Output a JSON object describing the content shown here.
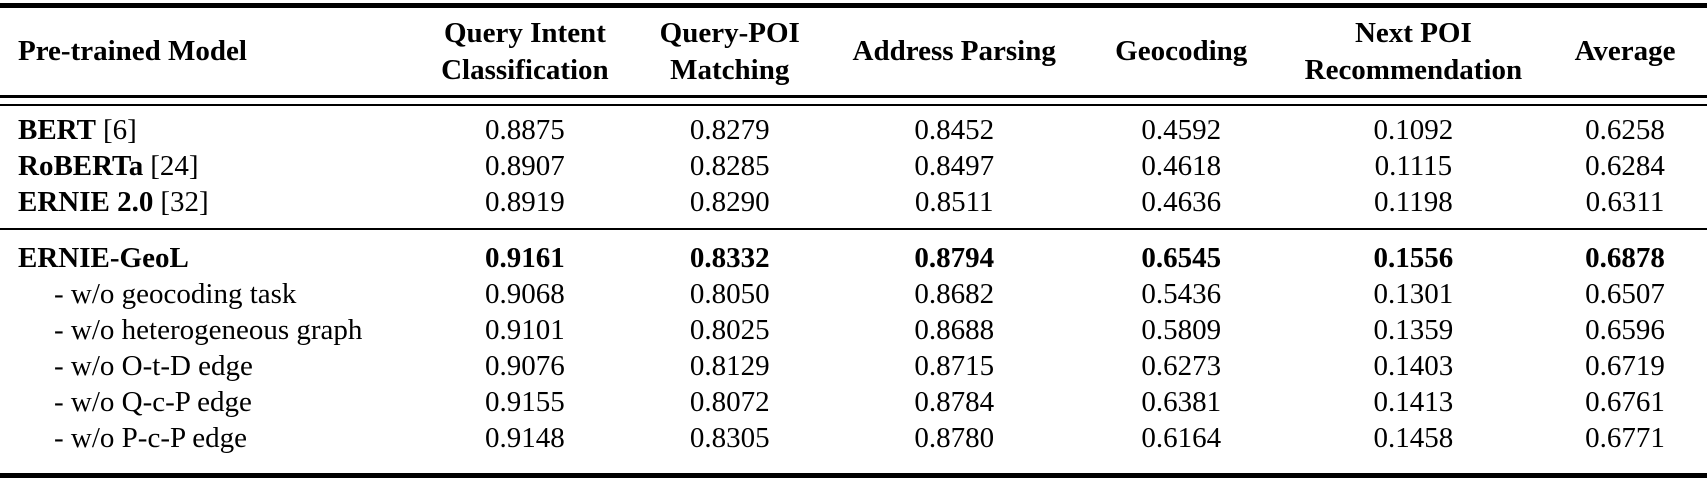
{
  "table": {
    "header": {
      "model": {
        "l1": "Pre-trained Model"
      },
      "qic": {
        "l1": "Query Intent",
        "l2": "Classification"
      },
      "qpm": {
        "l1": "Query-POI",
        "l2": "Matching"
      },
      "ap": {
        "l1": "Address Parsing"
      },
      "geo": {
        "l1": "Geocoding"
      },
      "npr": {
        "l1": "Next POI",
        "l2": "Recommendation"
      },
      "avg": {
        "l1": "Average"
      }
    },
    "baselines": [
      {
        "name": "BERT",
        "cite": "[6]",
        "qic": "0.8875",
        "qpm": "0.8279",
        "ap": "0.8452",
        "geo": "0.4592",
        "npr": "0.1092",
        "avg": "0.6258"
      },
      {
        "name": "RoBERTa",
        "cite": "[24]",
        "qic": "0.8907",
        "qpm": "0.8285",
        "ap": "0.8497",
        "geo": "0.4618",
        "npr": "0.1115",
        "avg": "0.6284"
      },
      {
        "name": "ERNIE 2.0",
        "cite": "[32]",
        "qic": "0.8919",
        "qpm": "0.8290",
        "ap": "0.8511",
        "geo": "0.4636",
        "npr": "0.1198",
        "avg": "0.6311"
      }
    ],
    "ernie_geol": {
      "name": "ERNIE-GeoL",
      "qic": "0.9161",
      "qpm": "0.8332",
      "ap": "0.8794",
      "geo": "0.6545",
      "npr": "0.1556",
      "avg": "0.6878"
    },
    "ablations": [
      {
        "name": "- w/o geocoding task",
        "qic": "0.9068",
        "qpm": "0.8050",
        "ap": "0.8682",
        "geo": "0.5436",
        "npr": "0.1301",
        "avg": "0.6507"
      },
      {
        "name": "- w/o heterogeneous graph",
        "qic": "0.9101",
        "qpm": "0.8025",
        "ap": "0.8688",
        "geo": "0.5809",
        "npr": "0.1359",
        "avg": "0.6596"
      },
      {
        "name": "- w/o O-t-D edge",
        "qic": "0.9076",
        "qpm": "0.8129",
        "ap": "0.8715",
        "geo": "0.6273",
        "npr": "0.1403",
        "avg": "0.6719"
      },
      {
        "name": "- w/o Q-c-P edge",
        "qic": "0.9155",
        "qpm": "0.8072",
        "ap": "0.8784",
        "geo": "0.6381",
        "npr": "0.1413",
        "avg": "0.6761"
      },
      {
        "name": "- w/o P-c-P edge",
        "qic": "0.9148",
        "qpm": "0.8305",
        "ap": "0.8780",
        "geo": "0.6164",
        "npr": "0.1458",
        "avg": "0.6771"
      }
    ],
    "colors": {
      "text": "#000000",
      "background": "#ffffff",
      "rule": "#000000"
    }
  }
}
